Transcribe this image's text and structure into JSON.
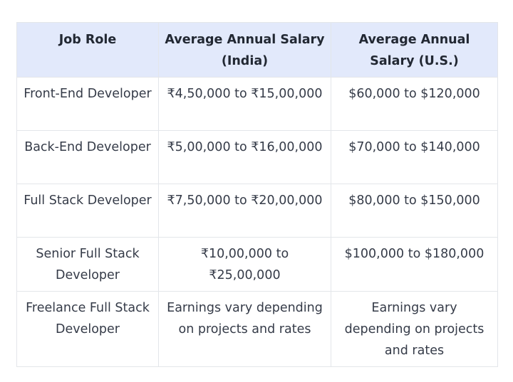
{
  "table": {
    "headers": [
      "Job Role",
      "Average Annual Salary (India)",
      "Average Annual Salary (U.S.)"
    ],
    "rows": [
      [
        "Front-End Developer",
        "₹4,50,000 to ₹15,00,000",
        "$60,000 to $120,000"
      ],
      [
        "Back-End Developer",
        "₹5,00,000 to ₹16,00,000",
        "$70,000 to $140,000"
      ],
      [
        "Full Stack Developer",
        "₹7,50,000 to ₹20,00,000",
        "$80,000 to $150,000"
      ],
      [
        "Senior Full Stack Developer",
        "₹10,00,000 to ₹25,00,000",
        "$100,000 to $180,000"
      ],
      [
        "Freelance Full Stack Developer",
        "Earnings vary depending on projects and rates",
        "Earnings vary depending on projects and rates"
      ]
    ]
  },
  "colors": {
    "header_background": "#e2e9fb",
    "border": "#e3e6ea",
    "text": "#353b48"
  }
}
